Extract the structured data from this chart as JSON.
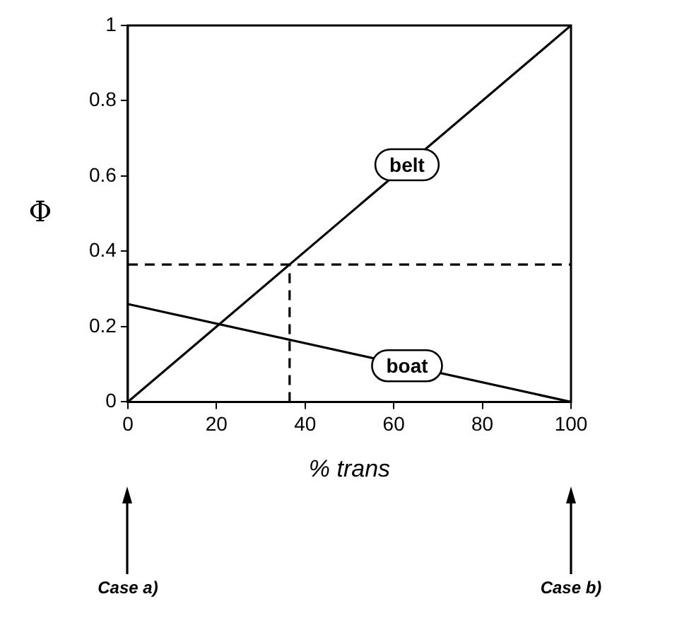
{
  "chart_data": {
    "type": "line",
    "xlabel": "% trans",
    "ylabel": "Φ",
    "xlim": [
      0,
      100
    ],
    "ylim": [
      0,
      1
    ],
    "xticks": [
      0,
      20,
      40,
      60,
      80,
      100
    ],
    "yticks": [
      0,
      0.2,
      0.4,
      0.6,
      0.8,
      1
    ],
    "marker": "none",
    "line_style": "solid",
    "series": [
      {
        "name": "belt",
        "color": "#000000",
        "x": [
          0,
          100
        ],
        "values": [
          0,
          1
        ]
      },
      {
        "name": "boat",
        "color": "#000000",
        "x": [
          0,
          100
        ],
        "values": [
          0.26,
          0
        ]
      },
      {
        "color": "#000000",
        "x": [
          0,
          100
        ],
        "values": [
          0.365,
          0.365
        ],
        "line_style": "dashed"
      },
      {
        "color": "#000000",
        "x": [
          36.5,
          36.5
        ],
        "values": [
          0,
          0.365
        ],
        "line_style": "dashed"
      }
    ],
    "annotations": [
      {
        "text": "Case a)",
        "x": 0
      },
      {
        "text": "Case b)",
        "x": 100
      }
    ]
  }
}
